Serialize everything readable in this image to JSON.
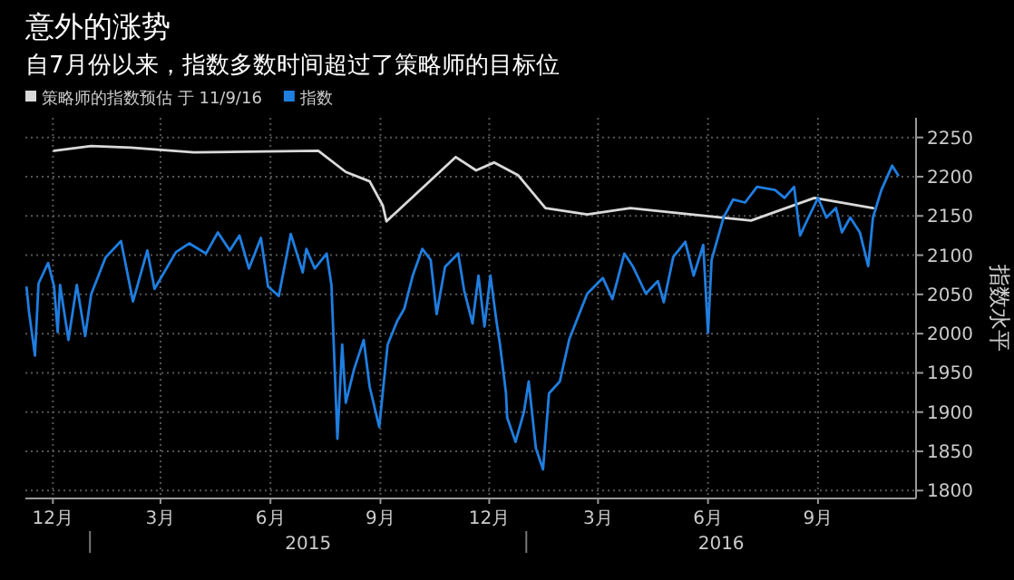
{
  "chart_data": {
    "type": "line",
    "title": "意外的涨势",
    "subtitle": "自7月份以来，指数多数时间超过了策略师的目标位",
    "ylabel": "指数水平",
    "series": [
      {
        "name": "策略师的指数预估 于 11/9/16",
        "color": "#d9d9d9",
        "x": [
          "2014-12-02",
          "2015-01-02",
          "2015-02-04",
          "2015-03-29",
          "2015-07-11",
          "2015-08-03",
          "2015-08-23",
          "2015-09-03",
          "2015-09-06",
          "2015-11-03",
          "2015-11-20",
          "2015-12-05",
          "2015-12-25",
          "2016-01-17",
          "2016-02-21",
          "2016-03-28",
          "2016-05-18",
          "2016-07-07",
          "2016-08-29",
          "2016-10-17"
        ],
        "values": [
          2233,
          2239,
          2237,
          2231,
          2233,
          2206,
          2194,
          2163,
          2143,
          2225,
          2208,
          2218,
          2202,
          2160,
          2152,
          2160,
          2152,
          2144,
          2173,
          2160
        ]
      },
      {
        "name": "指数",
        "color": "#1f7ee0",
        "x": [
          "2014-11-09",
          "2014-11-11",
          "2014-11-16",
          "2014-11-19",
          "2014-11-27",
          "2014-12-02",
          "2014-12-05",
          "2014-12-07",
          "2014-12-14",
          "2014-12-21",
          "2014-12-28",
          "2015-01-02",
          "2015-01-14",
          "2015-01-27",
          "2015-02-06",
          "2015-02-18",
          "2015-02-24",
          "2015-03-14",
          "2015-03-25",
          "2015-04-08",
          "2015-04-18",
          "2015-04-28",
          "2015-05-06",
          "2015-05-14",
          "2015-05-24",
          "2015-05-30",
          "2015-06-08",
          "2015-06-18",
          "2015-06-28",
          "2015-07-01",
          "2015-07-08",
          "2015-07-18",
          "2015-07-22",
          "2015-07-27",
          "2015-07-31",
          "2015-08-03",
          "2015-08-10",
          "2015-08-18",
          "2015-08-23",
          "2015-08-31",
          "2015-09-07",
          "2015-09-15",
          "2015-09-21",
          "2015-09-28",
          "2015-10-06",
          "2015-10-13",
          "2015-10-18",
          "2015-10-25",
          "2015-11-05",
          "2015-11-10",
          "2015-11-17",
          "2015-11-22",
          "2015-11-27",
          "2015-12-02",
          "2015-12-07",
          "2015-12-10",
          "2015-12-15",
          "2015-12-16",
          "2015-12-23",
          "2015-12-30",
          "2016-01-03",
          "2016-01-09",
          "2016-01-15",
          "2016-01-20",
          "2016-01-29",
          "2016-02-06",
          "2016-02-14",
          "2016-02-21",
          "2016-03-05",
          "2016-03-13",
          "2016-03-23",
          "2016-03-30",
          "2016-04-10",
          "2016-04-20",
          "2016-04-25",
          "2016-05-03",
          "2016-05-13",
          "2016-05-20",
          "2016-05-28",
          "2016-06-01",
          "2016-06-04",
          "2016-06-14",
          "2016-06-22",
          "2016-07-02",
          "2016-07-12",
          "2016-07-27",
          "2016-08-04",
          "2016-08-12",
          "2016-08-17",
          "2016-08-24",
          "2016-09-01",
          "2016-09-08",
          "2016-09-16",
          "2016-09-21",
          "2016-09-28",
          "2016-10-06",
          "2016-10-13",
          "2016-10-17",
          "2016-10-24",
          "2016-11-02",
          "2016-11-07"
        ],
        "values": [
          2059,
          2028,
          1972,
          2064,
          2090,
          2060,
          2002,
          2062,
          1992,
          2062,
          1997,
          2050,
          2097,
          2118,
          2041,
          2106,
          2057,
          2104,
          2115,
          2102,
          2129,
          2106,
          2125,
          2083,
          2122,
          2060,
          2048,
          2127,
          2078,
          2108,
          2083,
          2102,
          2062,
          1866,
          1986,
          1912,
          1955,
          1992,
          1932,
          1881,
          1986,
          2016,
          2032,
          2074,
          2108,
          2094,
          2025,
          2085,
          2102,
          2055,
          2013,
          2074,
          2009,
          2074,
          2016,
          1986,
          1924,
          1893,
          1862,
          1900,
          1939,
          1854,
          1827,
          1924,
          1939,
          1993,
          2024,
          2051,
          2071,
          2044,
          2102,
          2086,
          2051,
          2067,
          2040,
          2098,
          2117,
          2074,
          2113,
          2001,
          2094,
          2148,
          2171,
          2167,
          2187,
          2183,
          2173,
          2187,
          2125,
          2148,
          2173,
          2148,
          2160,
          2129,
          2148,
          2129,
          2086,
          2148,
          2183,
          2214,
          2202
        ]
      }
    ],
    "xlim": [
      "2014-11-08",
      "2016-11-22"
    ],
    "xticks": [
      {
        "value": "2014-12-01",
        "label": "12月"
      },
      {
        "value": "2015-03-01",
        "label": "3月"
      },
      {
        "value": "2015-06-01",
        "label": "6月"
      },
      {
        "value": "2015-09-01",
        "label": "9月"
      },
      {
        "value": "2015-12-01",
        "label": "12月"
      },
      {
        "value": "2016-03-01",
        "label": "3月"
      },
      {
        "value": "2016-06-01",
        "label": "6月"
      },
      {
        "value": "2016-09-01",
        "label": "9月"
      }
    ],
    "ylim": [
      1790,
      2275
    ],
    "yticks": [
      1800,
      1850,
      1900,
      1950,
      2000,
      2050,
      2100,
      2150,
      2200,
      2250
    ],
    "annotations": [
      "2015",
      "2016"
    ],
    "grid": true,
    "legend": "top left",
    "line_style": "solid",
    "marker": "none"
  }
}
